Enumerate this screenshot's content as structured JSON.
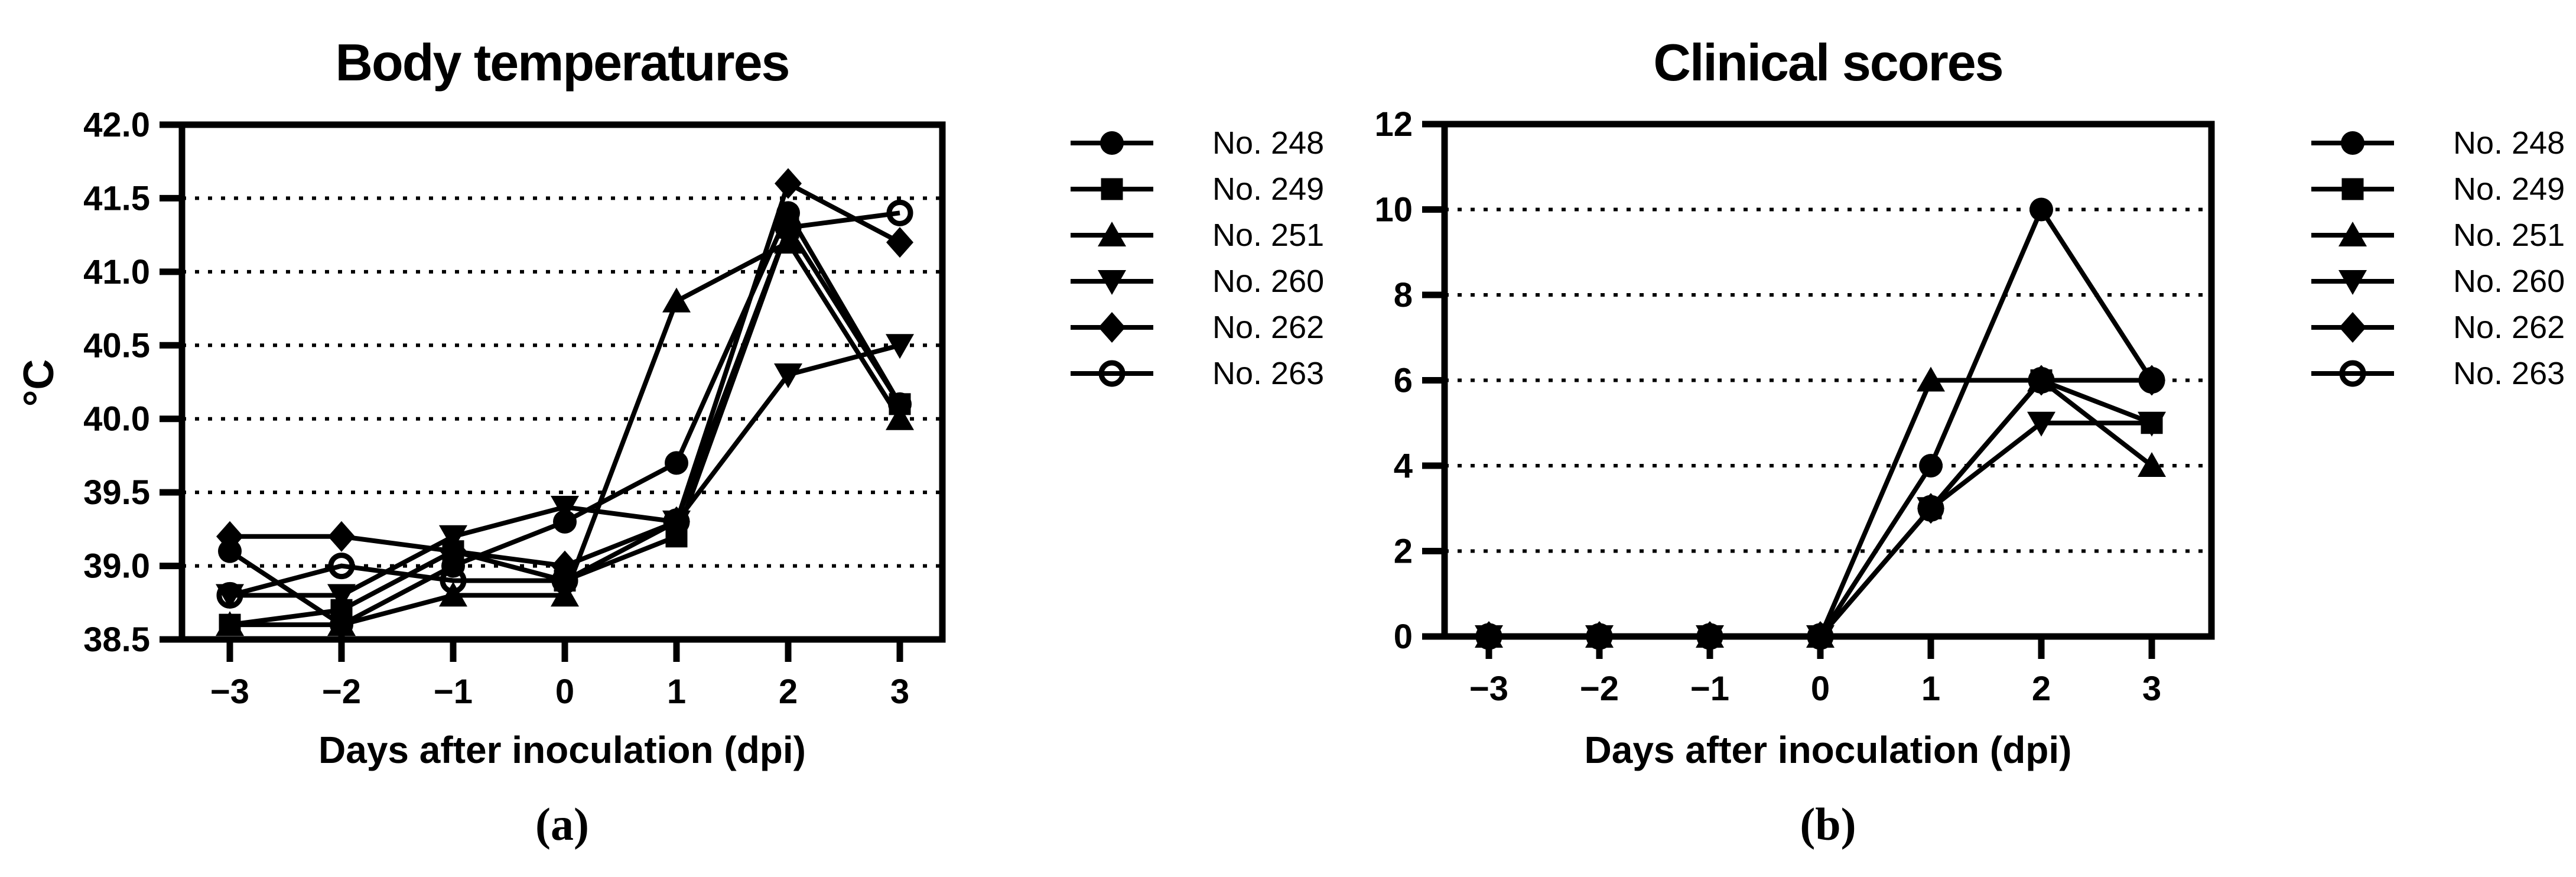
{
  "figure": {
    "background_color": "#ffffff",
    "ink_color": "#000000",
    "sublabel_a": "(a)",
    "sublabel_b": "(b)"
  },
  "legend": {
    "position": "right",
    "items": [
      {
        "label": "No. 248",
        "marker": "circle"
      },
      {
        "label": "No. 249",
        "marker": "square"
      },
      {
        "label": "No. 251",
        "marker": "triangle-up"
      },
      {
        "label": "No. 260",
        "marker": "triangle-down"
      },
      {
        "label": "No. 262",
        "marker": "diamond"
      },
      {
        "label": "No. 263",
        "marker": "circle-open"
      }
    ]
  },
  "chart_data": [
    {
      "id": "body-temperatures",
      "type": "line",
      "title": "Body temperatures",
      "ylabel": "°C",
      "xlabel": "Days after inoculation (dpi)",
      "sublabel": "(a)",
      "x": [
        -3,
        -2,
        -1,
        0,
        1,
        2,
        3
      ],
      "xtick_labels": [
        "−3",
        "−2",
        "−1",
        "0",
        "1",
        "2",
        "3"
      ],
      "ylim": [
        38.5,
        42.0
      ],
      "yticks": [
        38.5,
        39.0,
        39.5,
        40.0,
        40.5,
        41.0,
        41.5,
        42.0
      ],
      "ytick_labels": [
        "38.5",
        "39.0",
        "39.5",
        "40.0",
        "40.5",
        "41.0",
        "41.5",
        "42.0"
      ],
      "grid": "dotted-horizontal",
      "legend_position": "right",
      "series": [
        {
          "name": "No. 248",
          "marker": "circle",
          "values": [
            39.1,
            38.6,
            39.0,
            39.3,
            39.7,
            41.4,
            40.1
          ]
        },
        {
          "name": "No. 249",
          "marker": "square",
          "values": [
            38.6,
            38.7,
            39.1,
            38.9,
            39.2,
            41.3,
            40.1
          ]
        },
        {
          "name": "No. 251",
          "marker": "triangle-up",
          "values": [
            38.6,
            38.6,
            38.8,
            38.8,
            40.8,
            41.2,
            40.0
          ]
        },
        {
          "name": "No. 260",
          "marker": "triangle-down",
          "values": [
            38.8,
            38.8,
            39.2,
            39.4,
            39.3,
            40.3,
            40.5
          ]
        },
        {
          "name": "No. 262",
          "marker": "diamond",
          "values": [
            39.2,
            39.2,
            39.1,
            39.0,
            39.3,
            41.6,
            41.2
          ]
        },
        {
          "name": "No. 263",
          "marker": "circle-open",
          "values": [
            38.8,
            39.0,
            38.9,
            38.9,
            39.3,
            41.3,
            41.4
          ]
        }
      ]
    },
    {
      "id": "clinical-scores",
      "type": "line",
      "title": "Clinical scores",
      "ylabel": "",
      "xlabel": "Days after inoculation (dpi)",
      "sublabel": "(b)",
      "x": [
        -3,
        -2,
        -1,
        0,
        1,
        2,
        3
      ],
      "xtick_labels": [
        "−3",
        "−2",
        "−1",
        "0",
        "1",
        "2",
        "3"
      ],
      "ylim": [
        0,
        12
      ],
      "yticks": [
        0,
        2,
        4,
        6,
        8,
        10,
        12
      ],
      "ytick_labels": [
        "0",
        "2",
        "4",
        "6",
        "8",
        "10",
        "12"
      ],
      "grid": "dotted-horizontal",
      "legend_position": "right",
      "series": [
        {
          "name": "No. 248",
          "marker": "circle",
          "values": [
            0,
            0,
            0,
            0,
            4,
            10,
            6
          ]
        },
        {
          "name": "No. 249",
          "marker": "square",
          "values": [
            0,
            0,
            0,
            0,
            3,
            6,
            5
          ]
        },
        {
          "name": "No. 251",
          "marker": "triangle-up",
          "values": [
            0,
            0,
            0,
            0,
            6,
            6,
            4
          ]
        },
        {
          "name": "No. 260",
          "marker": "triangle-down",
          "values": [
            0,
            0,
            0,
            0,
            3,
            5,
            5
          ]
        },
        {
          "name": "No. 262",
          "marker": "diamond",
          "values": [
            0,
            0,
            0,
            0,
            3,
            6,
            6
          ]
        },
        {
          "name": "No. 263",
          "marker": "circle-open",
          "values": [
            0,
            0,
            0,
            0,
            3,
            6,
            6
          ]
        }
      ]
    }
  ]
}
